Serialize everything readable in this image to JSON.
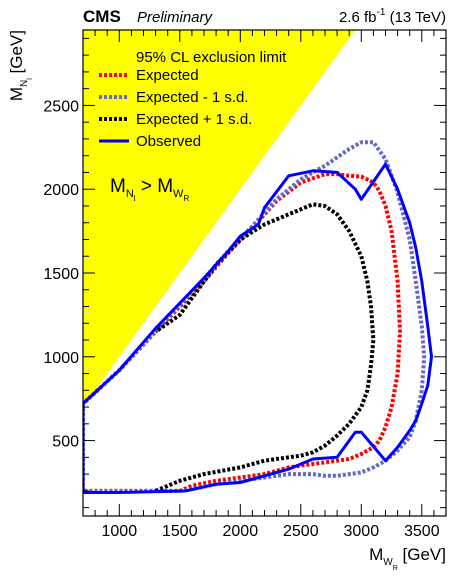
{
  "header": {
    "experiment": "CMS",
    "status": "Preliminary",
    "lumi_value": "2.6 fb",
    "lumi_exp": "-1",
    "energy": " (13 TeV)"
  },
  "chart_data": {
    "type": "line",
    "xlabel": {
      "main": "M",
      "sub": "W",
      "subsub": "R",
      "unit": " [GeV]"
    },
    "ylabel": {
      "main": "M",
      "sub": "N",
      "subsub": "l",
      "unit": " [GeV]"
    },
    "xlim": [
      700,
      3700
    ],
    "ylim": [
      50,
      2950
    ],
    "xticks": [
      1000,
      1500,
      2000,
      2500,
      3000,
      3500
    ],
    "yticks": [
      500,
      1000,
      1500,
      2000,
      2500
    ],
    "legend_title": "95% CL exclusion limit",
    "region_label": {
      "left": "M",
      "left_sub": "N",
      "left_subsub": "l",
      "op": " > ",
      "right": "M",
      "right_sub": "W",
      "right_subsub": "R"
    },
    "kinematic_forbidden_fill": "#ffff00",
    "series": [
      {
        "name": "Expected",
        "color": "#ff0000",
        "style": "dotted",
        "x": [
          700,
          700,
          1000,
          1300,
          1500,
          1700,
          1900,
          2100,
          2300,
          2500,
          2700,
          2800,
          2900,
          3000,
          3100,
          3150,
          3200,
          3250,
          3300,
          3320,
          3300,
          3250,
          3200,
          3150,
          3100,
          3000,
          2900,
          2800,
          2700,
          2600,
          2400,
          2200,
          2000,
          1800,
          1600,
          1500,
          1000,
          700
        ],
        "y": [
          200,
          720,
          920,
          1150,
          1300,
          1450,
          1620,
          1770,
          1930,
          2040,
          2090,
          2090,
          2080,
          2075,
          2040,
          1990,
          1900,
          1750,
          1450,
          1150,
          900,
          700,
          580,
          500,
          460,
          420,
          390,
          380,
          370,
          360,
          340,
          300,
          280,
          260,
          230,
          200,
          200,
          200
        ]
      },
      {
        "name": "Expected - 1 s.d.",
        "color": "#6666cc",
        "style": "dotted",
        "x": [
          700,
          700,
          1000,
          1300,
          1500,
          1700,
          1900,
          2100,
          2300,
          2500,
          2700,
          2800,
          2900,
          3000,
          3100,
          3200,
          3300,
          3400,
          3450,
          3500,
          3520,
          3500,
          3450,
          3400,
          3300,
          3200,
          3100,
          3000,
          2900,
          2800,
          2700,
          2600,
          2500,
          2400,
          2200,
          2000,
          1800,
          1600,
          1500,
          1000,
          700
        ],
        "y": [
          200,
          720,
          920,
          1150,
          1310,
          1460,
          1630,
          1780,
          1940,
          2060,
          2140,
          2190,
          2240,
          2280,
          2280,
          2180,
          1980,
          1700,
          1450,
          1180,
          1000,
          800,
          620,
          520,
          440,
          380,
          340,
          310,
          300,
          290,
          290,
          300,
          300,
          300,
          280,
          260,
          240,
          210,
          200,
          200,
          200
        ]
      },
      {
        "name": "Expected + 1 s.d.",
        "color": "#000000",
        "style": "dotted",
        "x": [
          1300,
          1500,
          1700,
          2000,
          2200,
          2400,
          2500,
          2600,
          2700,
          2800,
          2900,
          3000,
          3050,
          3080,
          3100,
          3080,
          3050,
          3000,
          2900,
          2800,
          2700,
          2600,
          2500,
          2400,
          2300,
          2200,
          2000,
          1800,
          1600,
          1500,
          1300
        ],
        "y": [
          200,
          260,
          300,
          340,
          380,
          400,
          410,
          430,
          470,
          530,
          600,
          700,
          800,
          950,
          1100,
          1300,
          1450,
          1600,
          1750,
          1850,
          1900,
          1910,
          1880,
          1850,
          1820,
          1790,
          1700,
          1550,
          1350,
          1250,
          1150
        ]
      },
      {
        "name": "Observed",
        "color": "#0000ff",
        "style": "solid",
        "x": [
          700,
          700,
          1000,
          1300,
          1500,
          1700,
          1900,
          2000,
          2150,
          2200,
          2400,
          2600,
          2800,
          2950,
          3000,
          3200,
          3300,
          3400,
          3450,
          3500,
          3550,
          3580,
          3550,
          3500,
          3450,
          3400,
          3300,
          3200,
          3000,
          2950,
          2800,
          2600,
          2400,
          2200,
          2000,
          1800,
          1550,
          1000,
          700
        ],
        "y": [
          200,
          720,
          920,
          1170,
          1320,
          1470,
          1630,
          1720,
          1790,
          1890,
          2080,
          2110,
          2100,
          2000,
          1940,
          2150,
          2000,
          1800,
          1650,
          1450,
          1180,
          1000,
          830,
          720,
          620,
          560,
          460,
          380,
          550,
          550,
          400,
          390,
          330,
          290,
          250,
          240,
          200,
          190,
          190
        ]
      }
    ]
  }
}
